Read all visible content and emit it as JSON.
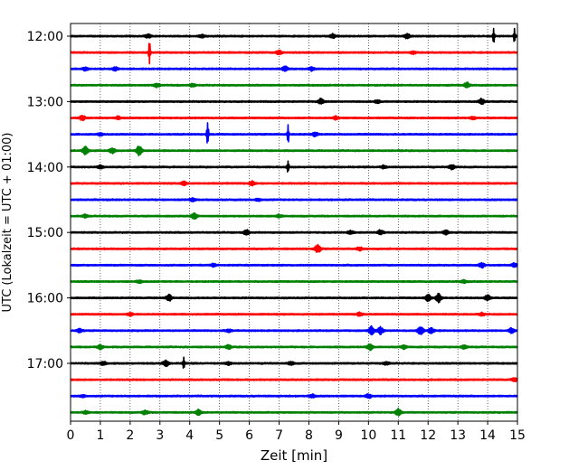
{
  "chart_data": {
    "type": "line",
    "title": "",
    "xlabel": "Zeit  [min]",
    "ylabel": "UTC (Lokalzeit = UTC + 01:00)",
    "xlim": [
      0,
      15
    ],
    "xticks": [
      0,
      1,
      2,
      3,
      4,
      5,
      6,
      7,
      8,
      9,
      10,
      11,
      12,
      13,
      14,
      15
    ],
    "ytick_labels": [
      "12:00",
      "13:00",
      "14:00",
      "15:00",
      "16:00",
      "17:00"
    ],
    "grid": "vertical dotted at each minute",
    "trace_interval_minutes": 15,
    "start_time": "12:00",
    "colors_cycle": [
      "#000000",
      "#ff0000",
      "#0000ff",
      "#008000"
    ],
    "traces": [
      {
        "time": "12:00",
        "color": "#000000",
        "events": [
          [
            2.6,
            0.6
          ],
          [
            4.4,
            0.5
          ],
          [
            8.8,
            0.7
          ],
          [
            11.3,
            0.9
          ],
          [
            14.2,
            2.8
          ],
          [
            14.9,
            2.4
          ]
        ]
      },
      {
        "time": "12:15",
        "color": "#ff0000",
        "events": [
          [
            2.65,
            4.0
          ],
          [
            7.0,
            0.7
          ],
          [
            11.5,
            0.5
          ]
        ]
      },
      {
        "time": "12:30",
        "color": "#0000ff",
        "events": [
          [
            0.5,
            0.5
          ],
          [
            1.5,
            0.6
          ],
          [
            7.2,
            0.9
          ],
          [
            8.1,
            0.6
          ]
        ]
      },
      {
        "time": "12:45",
        "color": "#008000",
        "events": [
          [
            2.9,
            0.6
          ],
          [
            4.1,
            0.5
          ],
          [
            13.3,
            0.9
          ]
        ]
      },
      {
        "time": "13:00",
        "color": "#000000",
        "events": [
          [
            8.4,
            0.9
          ],
          [
            13.8,
            1.0
          ],
          [
            10.3,
            0.5
          ]
        ]
      },
      {
        "time": "13:15",
        "color": "#ff0000",
        "events": [
          [
            0.4,
            0.8
          ],
          [
            1.6,
            0.5
          ],
          [
            8.9,
            0.6
          ],
          [
            13.5,
            0.5
          ]
        ]
      },
      {
        "time": "13:30",
        "color": "#0000ff",
        "events": [
          [
            4.6,
            5.0
          ],
          [
            7.3,
            3.2
          ],
          [
            8.2,
            0.7
          ],
          [
            1.0,
            0.4
          ]
        ]
      },
      {
        "time": "13:45",
        "color": "#008000",
        "events": [
          [
            0.5,
            1.4
          ],
          [
            2.3,
            1.6
          ],
          [
            1.4,
            0.9
          ]
        ]
      },
      {
        "time": "14:00",
        "color": "#000000",
        "events": [
          [
            1.0,
            0.6
          ],
          [
            7.3,
            2.2
          ],
          [
            10.5,
            0.5
          ],
          [
            12.8,
            0.9
          ]
        ]
      },
      {
        "time": "14:15",
        "color": "#ff0000",
        "events": [
          [
            3.8,
            0.6
          ],
          [
            6.1,
            0.7
          ]
        ]
      },
      {
        "time": "14:30",
        "color": "#0000ff",
        "events": [
          [
            4.1,
            0.5
          ],
          [
            6.3,
            0.4
          ]
        ]
      },
      {
        "time": "14:45",
        "color": "#008000",
        "events": [
          [
            0.5,
            0.5
          ],
          [
            4.15,
            1.0
          ],
          [
            7.0,
            0.5
          ]
        ]
      },
      {
        "time": "15:00",
        "color": "#000000",
        "events": [
          [
            5.9,
            0.9
          ],
          [
            9.4,
            0.6
          ],
          [
            10.4,
            0.8
          ],
          [
            12.6,
            0.7
          ]
        ]
      },
      {
        "time": "15:15",
        "color": "#ff0000",
        "events": [
          [
            8.3,
            1.3
          ],
          [
            9.7,
            0.6
          ]
        ]
      },
      {
        "time": "15:30",
        "color": "#0000ff",
        "events": [
          [
            4.8,
            0.5
          ],
          [
            13.8,
            0.8
          ],
          [
            14.9,
            0.7
          ]
        ]
      },
      {
        "time": "15:45",
        "color": "#008000",
        "events": [
          [
            2.3,
            0.4
          ],
          [
            13.2,
            0.5
          ]
        ]
      },
      {
        "time": "16:00",
        "color": "#000000",
        "events": [
          [
            3.3,
            1.2
          ],
          [
            12.0,
            1.1
          ],
          [
            12.35,
            1.5
          ],
          [
            14.0,
            1.0
          ]
        ]
      },
      {
        "time": "16:15",
        "color": "#ff0000",
        "events": [
          [
            2.0,
            0.5
          ],
          [
            9.7,
            0.6
          ],
          [
            13.8,
            0.5
          ]
        ]
      },
      {
        "time": "16:30",
        "color": "#0000ff",
        "events": [
          [
            0.3,
            0.6
          ],
          [
            5.3,
            0.5
          ],
          [
            10.1,
            1.4
          ],
          [
            10.4,
            1.2
          ],
          [
            11.75,
            1.5
          ],
          [
            12.1,
            1.0
          ],
          [
            14.8,
            0.8
          ]
        ]
      },
      {
        "time": "16:45",
        "color": "#008000",
        "events": [
          [
            1.0,
            0.7
          ],
          [
            5.3,
            0.6
          ],
          [
            10.05,
            1.1
          ],
          [
            11.2,
            0.7
          ],
          [
            13.2,
            0.6
          ]
        ]
      },
      {
        "time": "17:00",
        "color": "#000000",
        "events": [
          [
            1.1,
            0.6
          ],
          [
            3.2,
            1.0
          ],
          [
            3.8,
            2.4
          ],
          [
            5.3,
            0.5
          ],
          [
            7.4,
            0.6
          ],
          [
            10.6,
            0.5
          ]
        ]
      },
      {
        "time": "17:15",
        "color": "#ff0000",
        "events": [
          [
            14.9,
            0.5
          ]
        ]
      },
      {
        "time": "17:30",
        "color": "#0000ff",
        "events": [
          [
            0.4,
            0.4
          ],
          [
            8.1,
            0.6
          ],
          [
            10.0,
            0.7
          ]
        ]
      },
      {
        "time": "17:45",
        "color": "#008000",
        "events": [
          [
            0.5,
            0.5
          ],
          [
            2.5,
            0.7
          ],
          [
            4.3,
            0.9
          ],
          [
            11.0,
            1.2
          ]
        ]
      }
    ]
  }
}
